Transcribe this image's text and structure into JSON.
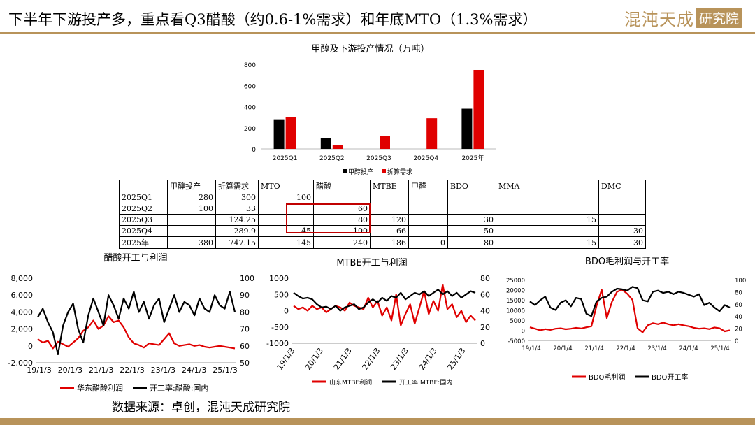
{
  "slide": {
    "title": "下半年下游投产多，重点看Q3醋酸（约0.6-1%需求）和年底MTO（1.3%需求）",
    "logo_main": "混沌天成",
    "logo_box": "研究院",
    "source": "数据来源：卓创，混沌天成研究院"
  },
  "colors": {
    "red": "#e00000",
    "black": "#000000",
    "gold": "#b8935a"
  },
  "table": {
    "headers": [
      "",
      "甲醇投产",
      "折算需求",
      "MTO",
      "醋酸",
      "MTBE",
      "甲醛",
      "BDO",
      "MMA",
      "DMC"
    ],
    "rows": [
      [
        "2025Q1",
        "280",
        "300",
        "100",
        "",
        "",
        "",
        "",
        "",
        ""
      ],
      [
        "2025Q2",
        "100",
        "33",
        "",
        "60",
        "",
        "",
        "",
        "",
        ""
      ],
      [
        "2025Q3",
        "",
        "124.25",
        "",
        "80",
        "120",
        "",
        "30",
        "15",
        ""
      ],
      [
        "2025Q4",
        "",
        "289.9",
        "45",
        "100",
        "66",
        "",
        "50",
        "",
        "30"
      ],
      [
        "2025年",
        "380",
        "747.15",
        "145",
        "240",
        "186",
        "0",
        "80",
        "15",
        "30"
      ]
    ]
  },
  "chart_data": [
    {
      "type": "bar",
      "title": "甲醇及下游投产情况（万吨）",
      "categories": [
        "2025Q1",
        "2025Q2",
        "2025Q3",
        "2025Q4",
        "2025年"
      ],
      "series": [
        {
          "name": "甲醇投产",
          "values": [
            280,
            100,
            0,
            0,
            380
          ],
          "color": "#000000"
        },
        {
          "name": "折算需求",
          "values": [
            300,
            33,
            124.25,
            289.9,
            747.15
          ],
          "color": "#e00000"
        }
      ],
      "ylim": [
        0,
        800
      ],
      "yticks": [
        "0",
        "200",
        "400",
        "600",
        "800"
      ],
      "legend": "bottom"
    },
    {
      "type": "line",
      "title": "醋酸开工与利润",
      "xticks": [
        "19/1/3",
        "20/1/3",
        "21/1/3",
        "22/1/3",
        "23/1/3",
        "24/1/3",
        "25/1/3"
      ],
      "y_left": {
        "range": [
          -2000,
          8000
        ],
        "ticks": [
          "-2,000",
          "0",
          "2,000",
          "4,000",
          "6,000",
          "8,000"
        ]
      },
      "y_right": {
        "range": [
          50,
          100
        ],
        "ticks": [
          "50",
          "60",
          "70",
          "80",
          "90",
          "100"
        ]
      },
      "series": [
        {
          "name": "华东醋酸利润",
          "axis": "left",
          "color": "#e00000",
          "values": [
            800,
            400,
            600,
            -300,
            500,
            200,
            -100,
            400,
            900,
            1800,
            2200,
            3000,
            2000,
            2400,
            3500,
            2800,
            3000,
            2200,
            1000,
            300,
            100,
            -200,
            300,
            200,
            100,
            800,
            1500,
            300,
            0,
            100,
            200,
            0,
            100,
            -100,
            -200,
            -100,
            0,
            -100,
            -200,
            -300
          ]
        },
        {
          "name": "开工率:醋酸:国内",
          "axis": "right",
          "color": "#000000",
          "values": [
            77,
            82,
            74,
            68,
            55,
            72,
            80,
            85,
            70,
            62,
            78,
            88,
            80,
            72,
            90,
            84,
            76,
            88,
            82,
            92,
            80,
            86,
            76,
            84,
            88,
            74,
            82,
            90,
            80,
            86,
            84,
            78,
            88,
            82,
            80,
            90,
            84,
            82,
            92,
            80
          ]
        }
      ],
      "legend": "bottom"
    },
    {
      "type": "line",
      "title": "MTBE开工与利润",
      "xticks": [
        "19/1/3",
        "20/1/3",
        "21/1/3",
        "22/1/3",
        "23/1/3",
        "24/1/3",
        "25/1/3"
      ],
      "y_left": {
        "range": [
          -1000,
          1000
        ],
        "ticks": [
          "-1000",
          "-500",
          "0",
          "500",
          "1000"
        ]
      },
      "y_right": {
        "range": [
          0,
          80
        ],
        "ticks": [
          "0",
          "20",
          "40",
          "60",
          "80"
        ]
      },
      "series": [
        {
          "name": "山东MTBE利润",
          "axis": "left",
          "color": "#e00000",
          "values": [
            150,
            50,
            100,
            0,
            150,
            50,
            100,
            -50,
            50,
            150,
            100,
            0,
            250,
            150,
            100,
            50,
            400,
            100,
            300,
            -150,
            100,
            -300,
            500,
            -450,
            -100,
            200,
            -400,
            100,
            600,
            -100,
            300,
            0,
            800,
            50,
            200,
            -200,
            0,
            -350,
            -150,
            -300
          ]
        },
        {
          "name": "开工率:MTBE:国内",
          "axis": "right",
          "color": "#000000",
          "values": [
            62,
            58,
            55,
            56,
            54,
            48,
            44,
            45,
            42,
            46,
            40,
            44,
            46,
            48,
            42,
            44,
            50,
            54,
            50,
            56,
            52,
            58,
            56,
            62,
            54,
            58,
            62,
            60,
            64,
            58,
            62,
            66,
            60,
            64,
            58,
            62,
            56,
            60,
            64,
            62
          ]
        }
      ],
      "legend": "bottom"
    },
    {
      "type": "line",
      "title": "BDO毛利润与开工率",
      "xticks": [
        "19/1/4",
        "20/1/4",
        "21/1/4",
        "22/1/4",
        "23/1/4",
        "24/1/4",
        "25/1/4"
      ],
      "y_left": {
        "range": [
          -5000,
          25000
        ],
        "ticks": [
          "-5000",
          "0",
          "5000",
          "10000",
          "15000",
          "20000",
          "25000"
        ]
      },
      "y_right": {
        "range": [
          0,
          100
        ],
        "ticks": [
          "0",
          "20",
          "40",
          "60",
          "80",
          "100"
        ]
      },
      "series": [
        {
          "name": "BDO毛利润",
          "axis": "left",
          "color": "#e00000",
          "values": [
            1500,
            800,
            0,
            600,
            200,
            800,
            1000,
            500,
            800,
            1200,
            900,
            1500,
            2000,
            12000,
            20000,
            6000,
            14000,
            19000,
            20000,
            18000,
            15000,
            1000,
            -1000,
            2500,
            3500,
            3000,
            3800,
            3000,
            2500,
            3000,
            2400,
            2000,
            1200,
            800,
            1000,
            600,
            1400,
            1000,
            -500,
            0
          ]
        },
        {
          "name": "BDO开工率",
          "axis": "right",
          "color": "#000000",
          "values": [
            64,
            58,
            66,
            72,
            54,
            50,
            62,
            66,
            56,
            70,
            68,
            44,
            40,
            64,
            70,
            72,
            80,
            85,
            84,
            82,
            88,
            86,
            66,
            64,
            80,
            82,
            78,
            80,
            76,
            80,
            78,
            75,
            72,
            76,
            58,
            62,
            54,
            48,
            58,
            54
          ]
        }
      ],
      "legend": "bottom"
    }
  ]
}
